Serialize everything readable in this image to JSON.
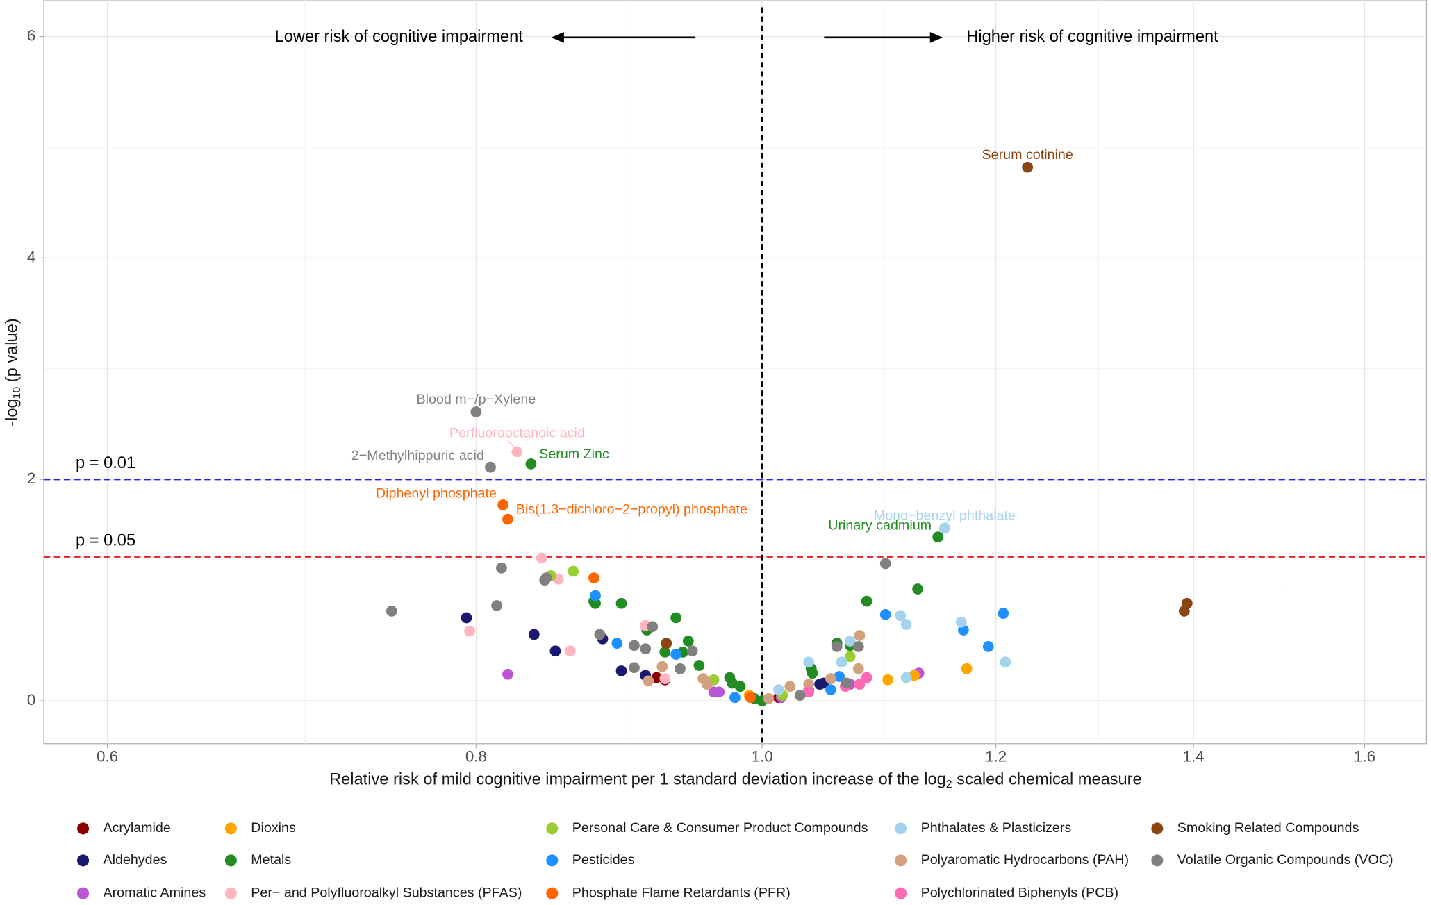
{
  "chart_data": {
    "type": "scatter",
    "xlabel": [
      "Relative risk of mild cognitive impairment per 1 standard deviation increase of the log",
      "2",
      " scaled chemical measure"
    ],
    "ylabel": [
      "-log",
      "10",
      " (p value)"
    ],
    "xlog": true,
    "xlim": [
      0.571,
      1.679
    ],
    "xticks": [
      0.6,
      0.8,
      {
        "value": 1,
        "label": "1.0"
      },
      1.2,
      1.4,
      1.6
    ],
    "xminor": [
      0.7,
      0.9,
      1.1,
      1.3,
      1.5
    ],
    "ylim": [
      -0.387,
      6.33
    ],
    "yticks": [
      0,
      2,
      4,
      6
    ],
    "yminor": [
      1,
      3,
      5
    ],
    "grid": true,
    "vline": 1,
    "reflines": [
      {
        "value": 2,
        "label": "p = 0.01",
        "color": "#1f1fe6"
      },
      {
        "value": 1.301,
        "label": "p = 0.05",
        "color": "#e61f2a"
      }
    ],
    "direction_labels": [
      "Lower risk of cognitive impairment",
      "Higher risk of cognitive impairment"
    ],
    "annotations": [
      {
        "text": "Serum cotinine",
        "x": 1.23,
        "y": 4.82,
        "color": "#8B4513",
        "position": "above"
      },
      {
        "text": "Blood m−/p−Xylene",
        "x": 0.8,
        "y": 2.61,
        "color": "#808080",
        "position": "above"
      },
      {
        "text": "Perfluorooctanoic acid",
        "x": 0.826,
        "y": 2.25,
        "color": "#FFB6C1",
        "position": "above"
      },
      {
        "text": "2−Methylhippuric acid",
        "x": 0.809,
        "y": 2.11,
        "color": "#808080",
        "position": "left"
      },
      {
        "text": "Serum Zinc",
        "x": 0.835,
        "y": 2.14,
        "color": "#228B22",
        "position": "right"
      },
      {
        "text": "Diphenyl phosphate",
        "x": 0.817,
        "y": 1.77,
        "color": "#FF6600",
        "position": "left"
      },
      {
        "text": "Bis(1,3−dichloro−2−propyl) phosphate",
        "x": 0.82,
        "y": 1.64,
        "color": "#FF6600",
        "position": "right"
      },
      {
        "text": "Mono−benzyl phthalate",
        "x": 1.153,
        "y": 1.56,
        "color": "#A4D3EE",
        "position": "above"
      },
      {
        "text": "Urinary cadmium",
        "x": 1.147,
        "y": 1.48,
        "color": "#228B22",
        "position": "left"
      }
    ],
    "series": [
      {
        "name": "Acrylamide",
        "color": "#8B0000",
        "x": [
          0.921,
          0.927,
          1.013
        ],
        "y": [
          0.21,
          0.19,
          0.03
        ]
      },
      {
        "name": "Aldehydes",
        "color": "#191970",
        "x": [
          0.794,
          0.837,
          0.851,
          0.883,
          0.896,
          0.913,
          1.046,
          1.049
        ],
        "y": [
          0.75,
          0.6,
          0.45,
          0.56,
          0.27,
          0.23,
          0.15,
          0.16
        ]
      },
      {
        "name": "Aromatic Amines",
        "color": "#BA55D3",
        "x": [
          0.82,
          0.963,
          0.967,
          1.015,
          1.037,
          1.128,
          1.13,
          1.071
        ],
        "y": [
          0.24,
          0.08,
          0.08,
          0.03,
          0.1,
          0.24,
          0.25,
          0.15
        ]
      },
      {
        "name": "Dioxins",
        "color": "#FFA500",
        "x": [
          1.103,
          1.173,
          1.126,
          0.99
        ],
        "y": [
          0.19,
          0.29,
          0.23,
          0.05
        ]
      },
      {
        "name": "Metals",
        "color": "#228B22",
        "x": [
          0.835,
          1.147,
          0.877,
          0.878,
          0.896,
          0.914,
          0.935,
          0.94,
          0.944,
          0.927,
          0.952,
          0.975,
          0.977,
          0.983,
          1.0,
          0.994,
          1.039,
          1.04,
          1.06,
          1.071,
          1.085,
          1.129
        ],
        "y": [
          2.14,
          1.48,
          0.9,
          0.88,
          0.88,
          0.64,
          0.75,
          0.44,
          0.54,
          0.44,
          0.32,
          0.21,
          0.16,
          0.13,
          0,
          0.02,
          0.29,
          0.25,
          0.52,
          0.5,
          0.9,
          1.01
        ]
      },
      {
        "name": "Per− and Polyfluoroalkyl Substances (PFAS)",
        "color": "#FFB6C1",
        "x": [
          0.826,
          0.842,
          0.796,
          0.853,
          0.861,
          0.913,
          0.927
        ],
        "y": [
          2.25,
          1.29,
          0.63,
          1.1,
          0.45,
          0.68,
          0.2
        ]
      },
      {
        "name": "Personal Care & Consumer Product Compounds",
        "color": "#9ACD32",
        "x": [
          0.848,
          0.863,
          0.963,
          1.016,
          1.071
        ],
        "y": [
          1.13,
          1.17,
          0.19,
          0.05,
          0.4
        ]
      },
      {
        "name": "Pesticides",
        "color": "#1E90FF",
        "x": [
          0.878,
          0.893,
          0.935,
          0.979,
          1.055,
          1.062,
          1.101,
          1.17,
          1.193,
          1.207
        ],
        "y": [
          0.95,
          0.52,
          0.42,
          0.03,
          0.1,
          0.22,
          0.78,
          0.64,
          0.49,
          0.79
        ]
      },
      {
        "name": "Phosphate Flame Retardants (PFR)",
        "color": "#FF6600",
        "x": [
          0.817,
          0.82,
          0.877,
          0.991
        ],
        "y": [
          1.77,
          1.64,
          1.11,
          0.03
        ]
      },
      {
        "name": "Phthalates & Plasticizers",
        "color": "#A4D3EE",
        "x": [
          1.153,
          1.114,
          1.119,
          1.168,
          1.209,
          1.037,
          1.064,
          1.071,
          1.119,
          1.013
        ],
        "y": [
          1.56,
          0.77,
          0.69,
          0.71,
          0.35,
          0.35,
          0.35,
          0.54,
          0.21,
          0.1
        ]
      },
      {
        "name": "Polyaromatic Hydrocarbons (PAH)",
        "color": "#D2A17F",
        "x": [
          1.079,
          1.078,
          0.925,
          0.915,
          0.955,
          0.958,
          1.022,
          1.037,
          1.055,
          1.005
        ],
        "y": [
          0.59,
          0.29,
          0.31,
          0.18,
          0.2,
          0.15,
          0.13,
          0.15,
          0.2,
          0.02
        ]
      },
      {
        "name": "Polychlorinated Biphenyls (PCB)",
        "color": "#FF69B4",
        "x": [
          1.079,
          1.085,
          1.067,
          1.037
        ],
        "y": [
          0.15,
          0.21,
          0.13,
          0.08
        ]
      },
      {
        "name": "Smoking Related Compounds",
        "color": "#8B4513",
        "x": [
          1.23,
          1.393,
          1.39,
          0.928
        ],
        "y": [
          4.82,
          0.88,
          0.81,
          0.52
        ]
      },
      {
        "name": "Volatile Organic Compounds (VOC)",
        "color": "#808080",
        "x": [
          0.8,
          0.809,
          0.749,
          0.816,
          0.813,
          0.844,
          0.845,
          0.881,
          0.905,
          0.913,
          0.918,
          0.905,
          0.938,
          0.947,
          1.101,
          1.06,
          1.078,
          1.068,
          1.03
        ],
        "y": [
          2.61,
          2.11,
          0.81,
          1.2,
          0.86,
          1.09,
          1.11,
          0.6,
          0.5,
          0.47,
          0.67,
          0.3,
          0.29,
          0.45,
          1.24,
          0.49,
          0.49,
          0.16,
          0.05
        ]
      }
    ]
  }
}
